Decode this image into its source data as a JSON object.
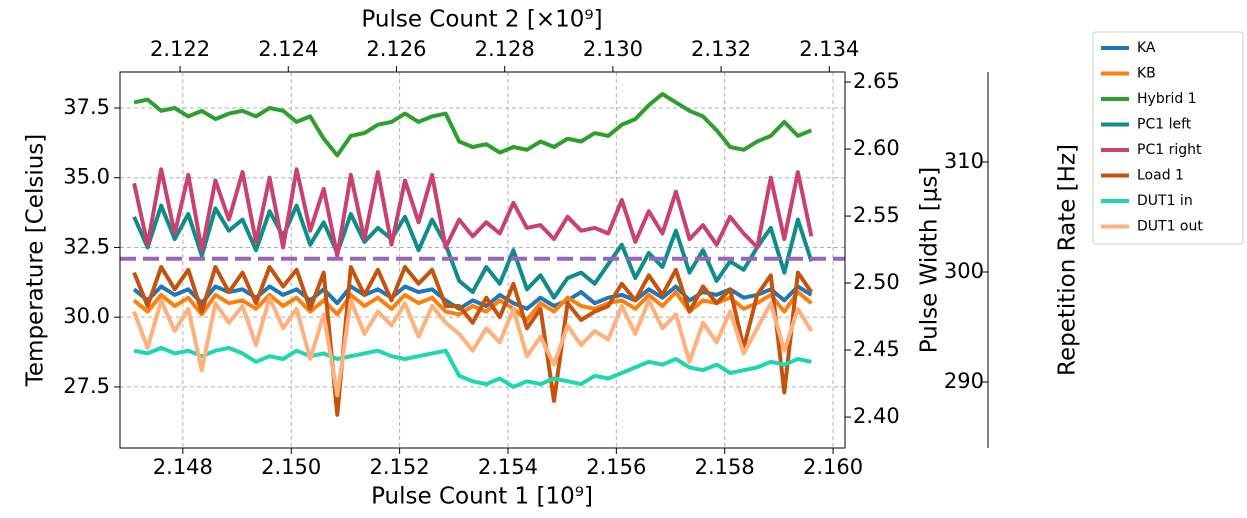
{
  "chart_data": {
    "type": "line",
    "xlabel": "Pulse Count 1 [10⁹]",
    "x2label": "Pulse Count 2 [×10⁹]",
    "ylabel": "Temperature [Celsius]",
    "y2label": "Pulse Width [μs]",
    "y3label": "Repetition Rate [Hz]",
    "xlim": [
      2.14684,
      2.16022
    ],
    "xticks": [
      2.148,
      {
        "value": 2.15,
        "label": "2.150"
      },
      2.152,
      2.154,
      2.156,
      2.158,
      {
        "value": 2.16,
        "label": "2.160"
      }
    ],
    "x2lim": [
      2.12089,
      2.13429
    ],
    "x2ticks": [
      2.122,
      2.124,
      2.126,
      2.128,
      {
        "value": 2.13,
        "label": "2.130"
      },
      2.132,
      2.134
    ],
    "ylim": [
      25.31,
      38.79
    ],
    "yticks": [
      27.5,
      {
        "value": 30,
        "label": "30.0"
      },
      32.5,
      {
        "value": 35,
        "label": "35.0"
      },
      37.5
    ],
    "y2lim": [
      2.3769,
      2.6575
    ],
    "y2ticks": [
      {
        "value": 2.4,
        "label": "2.40"
      },
      2.45,
      {
        "value": 2.5,
        "label": "2.50"
      },
      2.55,
      {
        "value": 2.6,
        "label": "2.60"
      },
      2.65
    ],
    "y3lim": [
      284,
      318.18
    ],
    "y3ticks": [
      290,
      300,
      310
    ],
    "grid": true,
    "legend": "outside upper right",
    "x": [
      2.1471,
      2.14735,
      2.1476,
      2.14785,
      2.1481,
      2.14835,
      2.1486,
      2.14885,
      2.1491,
      2.14935,
      2.1496,
      2.14985,
      2.1501,
      2.15035,
      2.1506,
      2.15085,
      2.1511,
      2.15135,
      2.1516,
      2.15185,
      2.1521,
      2.15235,
      2.1526,
      2.15285,
      2.1531,
      2.15335,
      2.1536,
      2.15385,
      2.1541,
      2.15435,
      2.1546,
      2.15485,
      2.1551,
      2.15535,
      2.1556,
      2.15585,
      2.1561,
      2.15635,
      2.1566,
      2.15685,
      2.1571,
      2.15735,
      2.1576,
      2.15785,
      2.1581,
      2.15835,
      2.1586,
      2.15885,
      2.1591,
      2.15935,
      2.1596
    ],
    "series": [
      {
        "name": "KA",
        "color": "#1f77b4",
        "values": [
          31.0,
          30.6,
          31.1,
          30.8,
          31.0,
          30.5,
          31.1,
          30.9,
          31.0,
          30.7,
          31.1,
          30.8,
          31.0,
          30.6,
          31.0,
          30.5,
          31.1,
          30.8,
          31.0,
          30.7,
          31.1,
          30.9,
          31.0,
          30.6,
          30.3,
          30.6,
          30.4,
          30.8,
          30.5,
          30.3,
          30.7,
          30.4,
          30.6,
          30.9,
          30.5,
          30.7,
          30.8,
          30.6,
          31.0,
          30.7,
          31.1,
          30.6,
          30.9,
          30.8,
          31.0,
          30.7,
          30.8,
          31.0,
          30.6,
          31.1,
          30.8
        ]
      },
      {
        "name": "KB",
        "color": "#ff7f0e",
        "values": [
          30.6,
          30.2,
          30.8,
          30.4,
          30.7,
          30.1,
          30.8,
          30.5,
          30.6,
          30.3,
          30.8,
          30.4,
          30.7,
          30.2,
          30.6,
          30.1,
          30.8,
          30.4,
          30.7,
          30.3,
          30.8,
          30.5,
          30.7,
          30.2,
          30.1,
          30.4,
          30.2,
          30.6,
          30.3,
          29.9,
          30.5,
          30.2,
          30.7,
          30.4,
          30.3,
          30.5,
          30.6,
          30.3,
          30.8,
          30.4,
          30.9,
          30.2,
          30.6,
          30.5,
          30.7,
          30.3,
          30.5,
          30.8,
          30.2,
          30.9,
          30.5
        ]
      },
      {
        "name": "Hybrid 1",
        "color": "#2ca02c",
        "values": [
          37.7,
          37.8,
          37.4,
          37.5,
          37.2,
          37.4,
          37.1,
          37.3,
          37.4,
          37.2,
          37.5,
          37.4,
          37.0,
          37.2,
          36.4,
          35.8,
          36.5,
          36.6,
          36.9,
          37.0,
          37.3,
          37.0,
          37.2,
          37.3,
          36.3,
          36.1,
          36.2,
          35.9,
          36.1,
          36.0,
          36.3,
          36.1,
          36.4,
          36.3,
          36.6,
          36.5,
          36.9,
          37.1,
          37.6,
          38.0,
          37.7,
          37.4,
          37.2,
          36.7,
          36.1,
          36.0,
          36.3,
          36.5,
          37.0,
          36.5,
          36.7
        ]
      },
      {
        "name": "PC1 left",
        "color": "#0f8c8c",
        "values": [
          33.6,
          32.5,
          34.0,
          32.8,
          33.7,
          32.2,
          33.9,
          33.1,
          33.5,
          32.4,
          33.8,
          32.9,
          34.0,
          32.6,
          33.4,
          32.3,
          33.7,
          32.7,
          33.2,
          32.8,
          33.6,
          32.4,
          33.5,
          32.6,
          31.3,
          30.9,
          31.8,
          31.2,
          32.4,
          31.0,
          31.5,
          30.7,
          31.4,
          31.6,
          31.2,
          31.9,
          32.6,
          31.4,
          32.3,
          31.8,
          33.1,
          31.6,
          32.4,
          31.3,
          32.0,
          31.7,
          32.5,
          33.2,
          31.6,
          33.5,
          32.0
        ]
      },
      {
        "name": "PC1 right",
        "color": "#c9416f",
        "values": [
          34.8,
          32.6,
          35.3,
          33.0,
          35.1,
          32.4,
          34.9,
          33.5,
          35.2,
          32.7,
          35.0,
          32.5,
          35.3,
          33.1,
          34.6,
          32.2,
          35.1,
          32.8,
          35.2,
          32.6,
          34.9,
          33.4,
          35.1,
          32.5,
          33.5,
          32.9,
          33.4,
          33.0,
          34.1,
          33.2,
          33.3,
          32.8,
          33.6,
          33.1,
          33.2,
          33.0,
          34.2,
          32.7,
          33.8,
          33.0,
          34.5,
          32.8,
          33.3,
          32.6,
          33.6,
          33.0,
          32.5,
          35.0,
          32.8,
          35.2,
          32.9
        ]
      },
      {
        "name": "Load 1",
        "color": "#c4530d",
        "values": [
          31.6,
          30.4,
          31.8,
          31.0,
          31.7,
          30.2,
          31.8,
          30.9,
          31.6,
          30.5,
          31.8,
          31.1,
          31.7,
          30.3,
          31.6,
          26.5,
          31.8,
          30.8,
          31.7,
          30.6,
          31.8,
          31.2,
          31.7,
          30.4,
          30.4,
          29.8,
          30.7,
          30.0,
          31.2,
          29.6,
          30.3,
          27.0,
          30.5,
          29.9,
          30.2,
          30.4,
          31.2,
          30.6,
          31.5,
          30.8,
          31.7,
          30.2,
          31.1,
          30.5,
          31.0,
          28.9,
          30.8,
          31.5,
          27.3,
          31.6,
          30.9
        ]
      },
      {
        "name": "DUT1 in",
        "color": "#1ed6b2",
        "values": [
          28.8,
          28.7,
          28.9,
          28.7,
          28.8,
          28.6,
          28.8,
          28.9,
          28.7,
          28.4,
          28.6,
          28.5,
          28.8,
          28.6,
          28.7,
          28.5,
          28.6,
          28.7,
          28.8,
          28.6,
          28.5,
          28.6,
          28.7,
          28.8,
          27.9,
          27.7,
          27.6,
          27.8,
          27.5,
          27.7,
          27.6,
          27.8,
          27.7,
          27.6,
          27.9,
          27.8,
          28.0,
          28.2,
          28.4,
          28.3,
          28.5,
          28.2,
          28.1,
          28.3,
          28.0,
          28.1,
          28.2,
          28.4,
          28.3,
          28.5,
          28.4
        ]
      },
      {
        "name": "DUT1 out",
        "color": "#ffb07c",
        "values": [
          30.2,
          28.9,
          30.6,
          29.5,
          30.3,
          28.1,
          30.5,
          29.8,
          30.4,
          29.0,
          30.7,
          29.6,
          30.3,
          28.5,
          30.1,
          27.2,
          30.6,
          29.4,
          30.2,
          29.7,
          30.5,
          29.3,
          30.4,
          29.8,
          29.4,
          28.8,
          29.6,
          29.1,
          30.3,
          28.6,
          29.3,
          28.3,
          29.7,
          29.0,
          29.5,
          29.2,
          30.4,
          29.4,
          30.6,
          29.6,
          30.1,
          28.4,
          29.8,
          29.1,
          30.2,
          28.7,
          29.6,
          30.5,
          28.8,
          30.3,
          29.5
        ]
      }
    ],
    "hlines": [
      {
        "value": 301.2,
        "axis": "y3",
        "color": "#9467bd",
        "dashed": true
      }
    ]
  }
}
